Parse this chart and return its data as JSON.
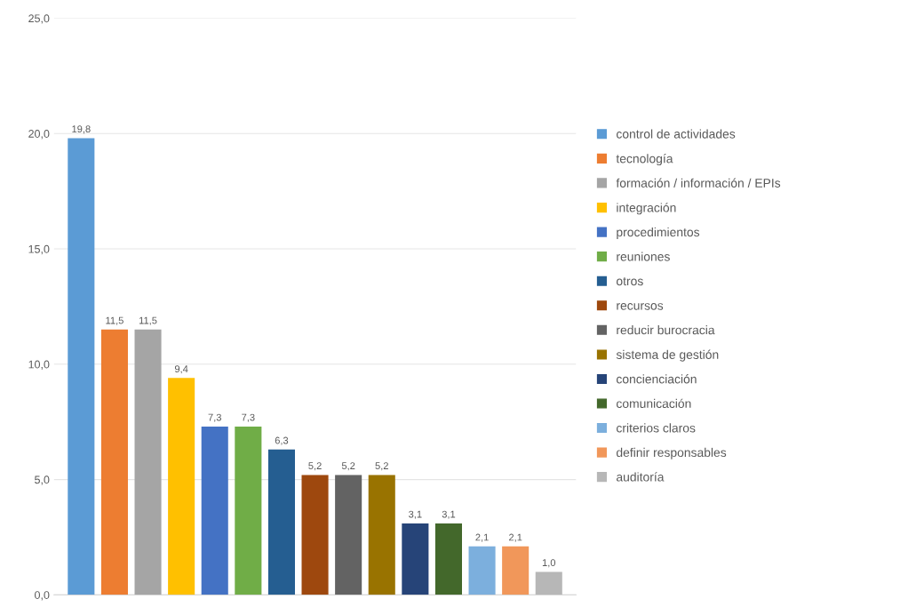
{
  "chart_data": {
    "type": "bar",
    "categories": [
      null
    ],
    "series": [
      {
        "name": "control de actividades",
        "color": "#5b9bd5",
        "values": [
          19.8
        ],
        "value_labels": [
          "19,8"
        ]
      },
      {
        "name": "tecnología",
        "color": "#ed7d31",
        "values": [
          11.5
        ],
        "value_labels": [
          "11,5"
        ]
      },
      {
        "name": "formación / información / EPIs",
        "color": "#a5a5a5",
        "values": [
          11.5
        ],
        "value_labels": [
          "11,5"
        ]
      },
      {
        "name": "integración",
        "color": "#ffc000",
        "values": [
          9.4
        ],
        "value_labels": [
          "9,4"
        ]
      },
      {
        "name": "procedimientos",
        "color": "#4472c4",
        "values": [
          7.3
        ],
        "value_labels": [
          "7,3"
        ]
      },
      {
        "name": "reuniones",
        "color": "#70ad47",
        "values": [
          7.3
        ],
        "value_labels": [
          "7,3"
        ]
      },
      {
        "name": "otros",
        "color": "#255e91",
        "values": [
          6.3
        ],
        "value_labels": [
          "6,3"
        ]
      },
      {
        "name": "recursos",
        "color": "#9e480e",
        "values": [
          5.2
        ],
        "value_labels": [
          "5,2"
        ]
      },
      {
        "name": "reducir burocracia",
        "color": "#636363",
        "values": [
          5.2
        ],
        "value_labels": [
          "5,2"
        ]
      },
      {
        "name": "sistema de gestión",
        "color": "#997300",
        "values": [
          5.2
        ],
        "value_labels": [
          "5,2"
        ]
      },
      {
        "name": "concienciación",
        "color": "#264478",
        "values": [
          3.1
        ],
        "value_labels": [
          "3,1"
        ]
      },
      {
        "name": "comunicación",
        "color": "#43682b",
        "values": [
          3.1
        ],
        "value_labels": [
          "3,1"
        ]
      },
      {
        "name": "criterios claros",
        "color": "#7cafdd",
        "values": [
          2.1
        ],
        "value_labels": [
          "2,1"
        ]
      },
      {
        "name": "definir responsables",
        "color": "#f1975a",
        "values": [
          2.1
        ],
        "value_labels": [
          "2,1"
        ]
      },
      {
        "name": "auditoría",
        "color": "#b7b7b7",
        "values": [
          1.0
        ],
        "value_labels": [
          "1,0"
        ]
      }
    ],
    "ylim": [
      0,
      25
    ],
    "yticks": [
      {
        "value": 0,
        "label": "0,0"
      },
      {
        "value": 5,
        "label": "5,0"
      },
      {
        "value": 10,
        "label": "10,0"
      },
      {
        "value": 15,
        "label": "15,0"
      },
      {
        "value": 20,
        "label": "20,0"
      },
      {
        "value": 25,
        "label": "25,0"
      }
    ],
    "grid": "y",
    "legend": "right"
  }
}
